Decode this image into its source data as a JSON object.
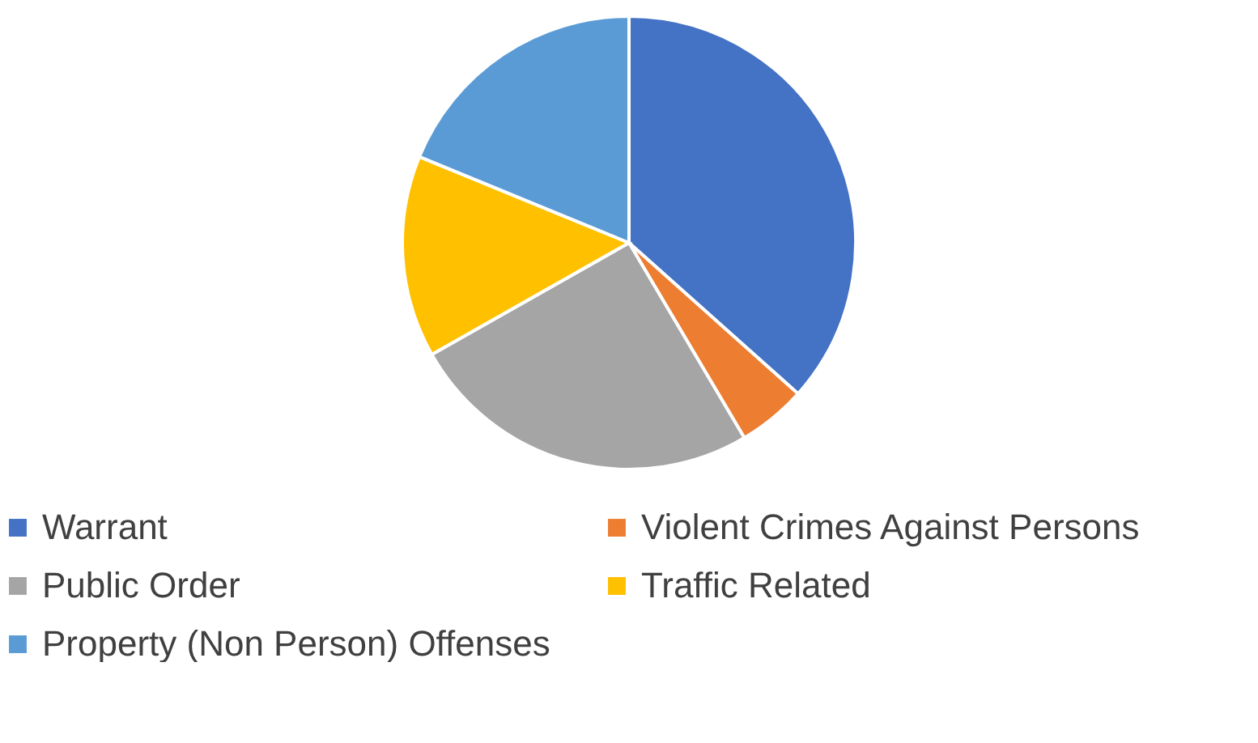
{
  "chart_data": {
    "type": "pie",
    "categories": [
      "Warrant",
      "Violent Crimes Against Persons",
      "Public Order",
      "Traffic Related",
      "Property (Non Person) Offenses"
    ],
    "values": [
      36.6,
      4.9,
      25.3,
      14.4,
      18.8
    ],
    "colors": [
      "#4472c4",
      "#ed7d31",
      "#a5a5a5",
      "#ffc000",
      "#5b9bd5"
    ],
    "legend": "bottom"
  }
}
